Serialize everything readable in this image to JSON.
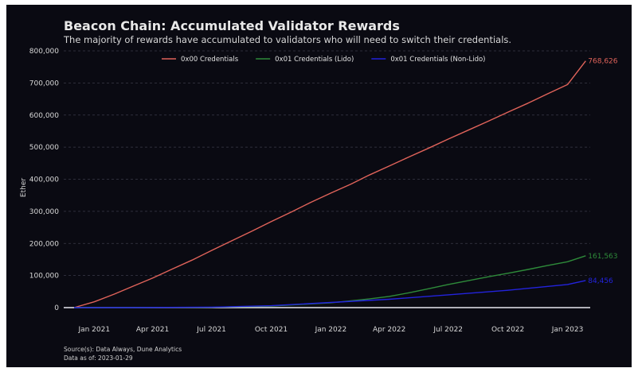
{
  "chart_data": {
    "type": "line",
    "title": "Beacon Chain: Accumulated Validator Rewards",
    "subtitle": "The majority of rewards have accumulated to validators who will need to switch their credentials.",
    "ylabel": "Ether",
    "ylim": [
      0,
      800000
    ],
    "yticks": [
      0,
      100000,
      200000,
      300000,
      400000,
      500000,
      600000,
      700000,
      800000
    ],
    "ytick_labels": [
      "0",
      "100,000",
      "200,000",
      "300,000",
      "400,000",
      "500,000",
      "600,000",
      "700,000",
      "800,000"
    ],
    "xlim": [
      "2020-11-15",
      "2023-02-05"
    ],
    "xticks": [
      "2021-01-01",
      "2021-04-01",
      "2021-07-01",
      "2021-10-01",
      "2022-01-01",
      "2022-04-01",
      "2022-07-01",
      "2022-10-01",
      "2023-01-01"
    ],
    "xtick_labels": [
      "Jan 2021",
      "Apr 2021",
      "Jul 2021",
      "Oct 2021",
      "Jan 2022",
      "Apr 2022",
      "Jul 2022",
      "Oct 2022",
      "Jan 2023"
    ],
    "grid": "horizontal",
    "legend_position": "top-center",
    "series": [
      {
        "name": "0x00 Credentials",
        "color": "#e0635a",
        "end_label": "768,626",
        "x": [
          "2020-12-01",
          "2021-01-01",
          "2021-02-01",
          "2021-03-01",
          "2021-04-01",
          "2021-05-01",
          "2021-06-01",
          "2021-07-01",
          "2021-08-01",
          "2021-09-01",
          "2021-10-01",
          "2021-11-01",
          "2021-12-01",
          "2022-01-01",
          "2022-02-01",
          "2022-03-01",
          "2022-04-01",
          "2022-05-01",
          "2022-06-01",
          "2022-07-01",
          "2022-08-01",
          "2022-09-01",
          "2022-10-01",
          "2022-11-01",
          "2022-12-01",
          "2023-01-01",
          "2023-01-29"
        ],
        "y": [
          0,
          18000,
          42000,
          66000,
          92000,
          120000,
          148000,
          178000,
          208000,
          238000,
          268000,
          298000,
          328000,
          357000,
          385000,
          413000,
          441000,
          469000,
          497000,
          525000,
          553000,
          581000,
          609000,
          637000,
          666000,
          695000,
          768626
        ]
      },
      {
        "name": "0x01 Credentials (Lido)",
        "color": "#2e8b3a",
        "end_label": "161,563",
        "x": [
          "2020-12-01",
          "2021-03-01",
          "2021-07-01",
          "2021-10-01",
          "2022-01-01",
          "2022-02-01",
          "2022-03-01",
          "2022-04-01",
          "2022-05-01",
          "2022-06-01",
          "2022-07-01",
          "2022-08-01",
          "2022-09-01",
          "2022-10-01",
          "2022-11-01",
          "2022-12-01",
          "2023-01-01",
          "2023-01-29"
        ],
        "y": [
          0,
          0,
          1000,
          5000,
          15000,
          21000,
          27000,
          35000,
          46000,
          59000,
          72000,
          84000,
          96000,
          107000,
          119000,
          131000,
          143000,
          161563
        ]
      },
      {
        "name": "0x01 Credentials (Non-Lido)",
        "color": "#2323dd",
        "end_label": "84,456",
        "x": [
          "2020-12-01",
          "2021-03-01",
          "2021-07-01",
          "2021-10-01",
          "2022-01-01",
          "2022-04-01",
          "2022-07-01",
          "2022-10-01",
          "2023-01-01",
          "2023-01-29"
        ],
        "y": [
          0,
          0,
          1500,
          6000,
          16000,
          26000,
          40000,
          54000,
          72000,
          84456
        ]
      }
    ],
    "baseline_color": "#e8e8f0"
  },
  "source": {
    "line1": "Source(s): Data Always, Dune Analytics",
    "line2": "Data as of: 2023-01-29"
  }
}
